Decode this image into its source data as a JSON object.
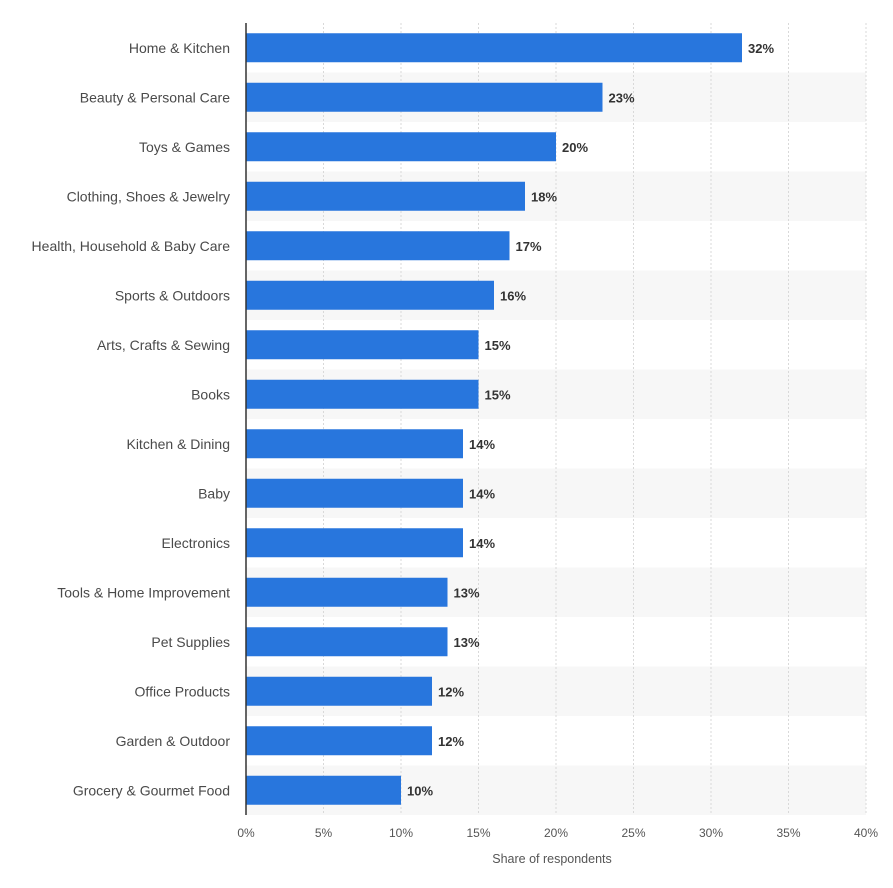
{
  "colors": {
    "bar": "#2876dd",
    "band": "#f7f7f7",
    "grid": "#d9d9d9",
    "axis": "#333333"
  },
  "chart_data": {
    "type": "bar",
    "orientation": "horizontal",
    "categories": [
      "Home & Kitchen",
      "Beauty & Personal Care",
      "Toys & Games",
      "Clothing, Shoes & Jewelry",
      "Health, Household & Baby Care",
      "Sports & Outdoors",
      "Arts, Crafts & Sewing",
      "Books",
      "Kitchen & Dining",
      "Baby",
      "Electronics",
      "Tools & Home Improvement",
      "Pet Supplies",
      "Office Products",
      "Garden & Outdoor",
      "Grocery & Gourmet Food"
    ],
    "values": [
      32,
      23,
      20,
      18,
      17,
      16,
      15,
      15,
      14,
      14,
      14,
      13,
      13,
      12,
      12,
      10
    ],
    "value_labels": [
      "32%",
      "23%",
      "20%",
      "18%",
      "17%",
      "16%",
      "15%",
      "15%",
      "14%",
      "14%",
      "14%",
      "13%",
      "13%",
      "12%",
      "12%",
      "10%"
    ],
    "xlim": [
      0,
      40
    ],
    "xticks": [
      0,
      5,
      10,
      15,
      20,
      25,
      30,
      35,
      40
    ],
    "xtick_labels": [
      "0%",
      "5%",
      "10%",
      "15%",
      "20%",
      "25%",
      "30%",
      "35%",
      "40%"
    ],
    "xlabel": "Share of respondents",
    "ylabel": "",
    "title": "",
    "grid": true,
    "legend": "none"
  }
}
